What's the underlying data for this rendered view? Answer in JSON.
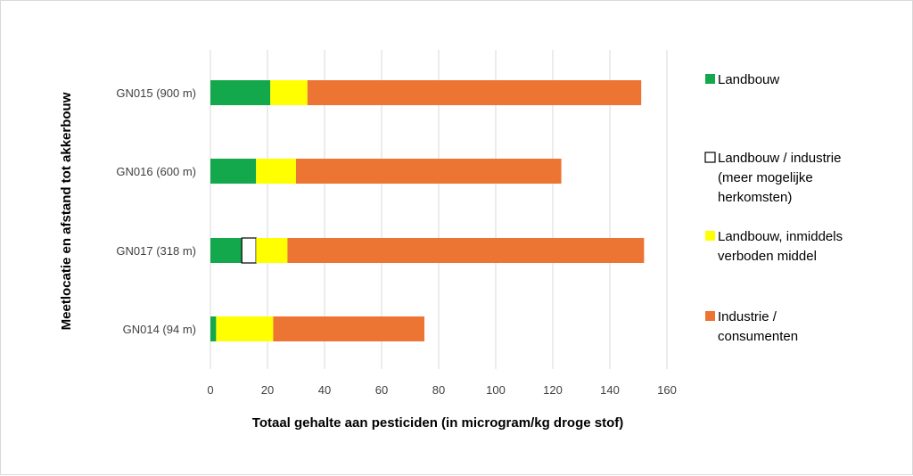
{
  "chart_data": {
    "type": "bar",
    "orientation": "horizontal",
    "stacked": true,
    "categories": [
      "GN015 (900 m)",
      "GN016 (600 m)",
      "GN017 (318 m)",
      "GN014 (94 m)"
    ],
    "series": [
      {
        "name": "Landbouw",
        "color": "#13a84b",
        "values": [
          21,
          16,
          11,
          2
        ]
      },
      {
        "name": "Landbouw / industrie (meer mogelijke herkomsten)",
        "color": "#ffffff",
        "stroke": "#000000",
        "values": [
          0,
          0,
          5,
          0
        ]
      },
      {
        "name": "Landbouw, inmiddels verboden middel",
        "color": "#ffff00",
        "values": [
          13,
          14,
          11,
          20
        ]
      },
      {
        "name": "Industrie / consumenten",
        "color": "#ed7533",
        "values": [
          117,
          93,
          125,
          53
        ]
      }
    ],
    "xlabel": "Totaal gehalte aan pesticiden (in microgram/kg droge stof)",
    "ylabel": "Meetlocatie en afstand tot akkerbouw",
    "xlim": [
      0,
      160
    ],
    "xticks": [
      "0",
      "20",
      "40",
      "60",
      "80",
      "100",
      "120",
      "140",
      "160"
    ],
    "grid": "vertical",
    "legend": {
      "position": "right",
      "entries": [
        {
          "lines": [
            "Landbouw"
          ]
        },
        {
          "lines": [
            "Landbouw / industrie",
            "(meer mogelijke",
            "herkomsten)"
          ]
        },
        {
          "lines": [
            "Landbouw, inmiddels",
            "verboden middel"
          ]
        },
        {
          "lines": [
            "Industrie /",
            "consumenten"
          ]
        }
      ]
    }
  }
}
